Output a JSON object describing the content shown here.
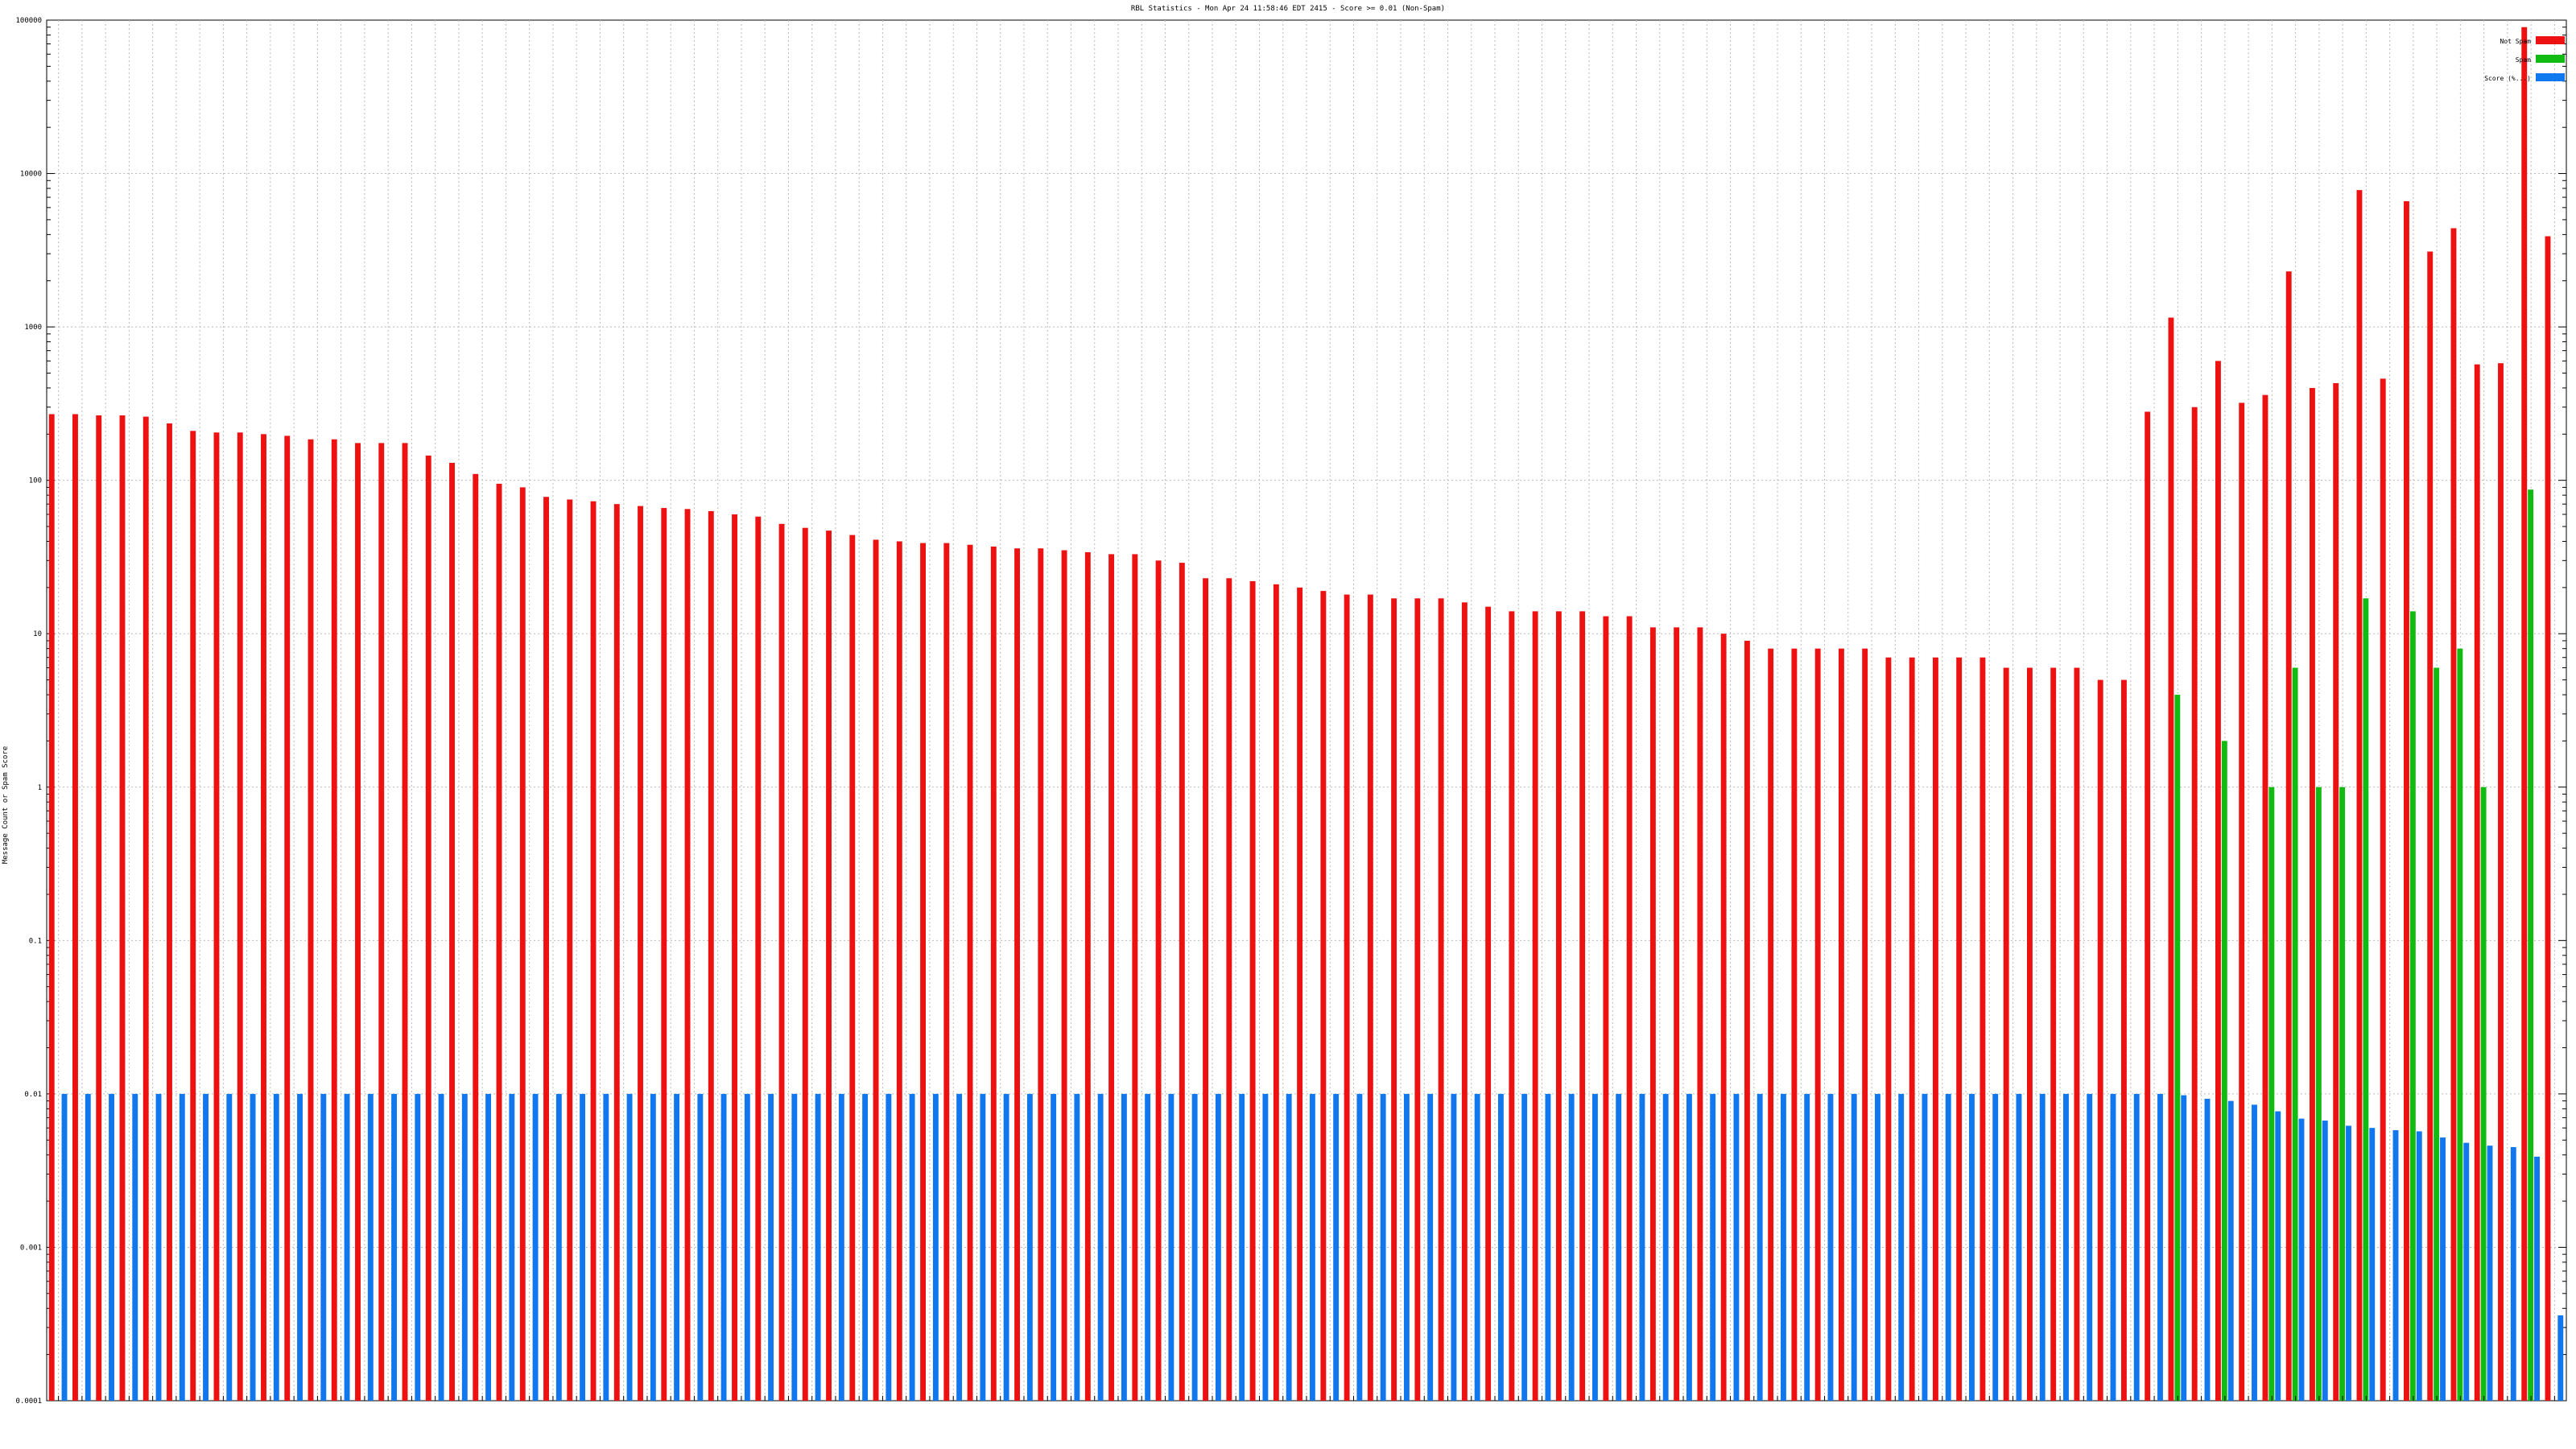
{
  "chart_data": {
    "type": "bar",
    "title": "RBL Statistics - Mon Apr 24 11:58:46 EDT 2415 - Score >= 0.01 (Non-Spam)",
    "ylabel": "Message Count or Spam Score",
    "xlabel": "",
    "yscale": "log",
    "ylim": [
      0.0001,
      100000
    ],
    "yticks": [
      "0.0001",
      "0.001",
      "0.01",
      "0.1",
      "1",
      "10",
      "100",
      "1000",
      "10000",
      "100000"
    ],
    "grid": true,
    "legend_position": "top-right",
    "series": [
      {
        "name": "Not Spam",
        "color": "#ee1111",
        "values": [
          270,
          270,
          265,
          265,
          260,
          235,
          210,
          205,
          205,
          200,
          195,
          185,
          185,
          175,
          175,
          175,
          145,
          130,
          110,
          95,
          90,
          78,
          75,
          73,
          70,
          68,
          66,
          65,
          63,
          60,
          58,
          52,
          49,
          47,
          44,
          41,
          40,
          39,
          39,
          38,
          37,
          36,
          36,
          35,
          34,
          33,
          33,
          30,
          29,
          23,
          23,
          22,
          21,
          20,
          19,
          18,
          18,
          17,
          17,
          17,
          16,
          15,
          14,
          14,
          14,
          14,
          13,
          13,
          11,
          11,
          11,
          10,
          9,
          8,
          8,
          8,
          8,
          8,
          7,
          7,
          7,
          7,
          7,
          6,
          6,
          6,
          6,
          5,
          5,
          280,
          1150,
          300,
          600,
          320,
          360,
          2300,
          400,
          430,
          7800,
          460,
          6600,
          3100,
          4400,
          570,
          580,
          90000,
          3900
        ]
      },
      {
        "name": "Spam",
        "color": "#11bb11",
        "values": [
          0,
          0,
          0,
          0,
          0,
          0,
          0,
          0,
          0,
          0,
          0,
          0,
          0,
          0,
          0,
          0,
          0,
          0,
          0,
          0,
          0,
          0,
          0,
          0,
          0,
          0,
          0,
          0,
          0,
          0,
          0,
          0,
          0,
          0,
          0,
          0,
          0,
          0,
          0,
          0,
          0,
          0,
          0,
          0,
          0,
          0,
          0,
          0,
          0,
          0,
          0,
          0,
          0,
          0,
          0,
          0,
          0,
          0,
          0,
          0,
          0,
          0,
          0,
          0,
          0,
          0,
          0,
          0,
          0,
          0,
          0,
          0,
          0,
          0,
          0,
          0,
          0,
          0,
          0,
          0,
          0,
          0,
          0,
          0,
          0,
          0,
          0,
          0,
          0,
          0,
          4,
          0,
          2,
          0,
          1,
          6,
          1,
          1,
          17,
          0,
          14,
          6,
          8,
          1,
          0,
          87,
          0
        ]
      },
      {
        "name": "Score (%...)",
        "color": "#1177ee",
        "values": [
          0.01,
          0.01,
          0.01,
          0.01,
          0.01,
          0.01,
          0.01,
          0.01,
          0.01,
          0.01,
          0.01,
          0.01,
          0.01,
          0.01,
          0.01,
          0.01,
          0.01,
          0.01,
          0.01,
          0.01,
          0.01,
          0.01,
          0.01,
          0.01,
          0.01,
          0.01,
          0.01,
          0.01,
          0.01,
          0.01,
          0.01,
          0.01,
          0.01,
          0.01,
          0.01,
          0.01,
          0.01,
          0.01,
          0.01,
          0.01,
          0.01,
          0.01,
          0.01,
          0.01,
          0.01,
          0.01,
          0.01,
          0.01,
          0.01,
          0.01,
          0.01,
          0.01,
          0.01,
          0.01,
          0.01,
          0.01,
          0.01,
          0.01,
          0.01,
          0.01,
          0.01,
          0.01,
          0.01,
          0.01,
          0.01,
          0.01,
          0.01,
          0.01,
          0.01,
          0.01,
          0.01,
          0.01,
          0.01,
          0.01,
          0.01,
          0.01,
          0.01,
          0.01,
          0.01,
          0.01,
          0.01,
          0.01,
          0.01,
          0.01,
          0.01,
          0.01,
          0.01,
          0.01,
          0.01,
          0.01,
          0.0098,
          0.0093,
          0.009,
          0.0085,
          0.0077,
          0.0069,
          0.0067,
          0.0062,
          0.006,
          0.0058,
          0.0057,
          0.0052,
          0.0048,
          0.0046,
          0.0045,
          0.0039,
          0.00036
        ]
      }
    ]
  }
}
